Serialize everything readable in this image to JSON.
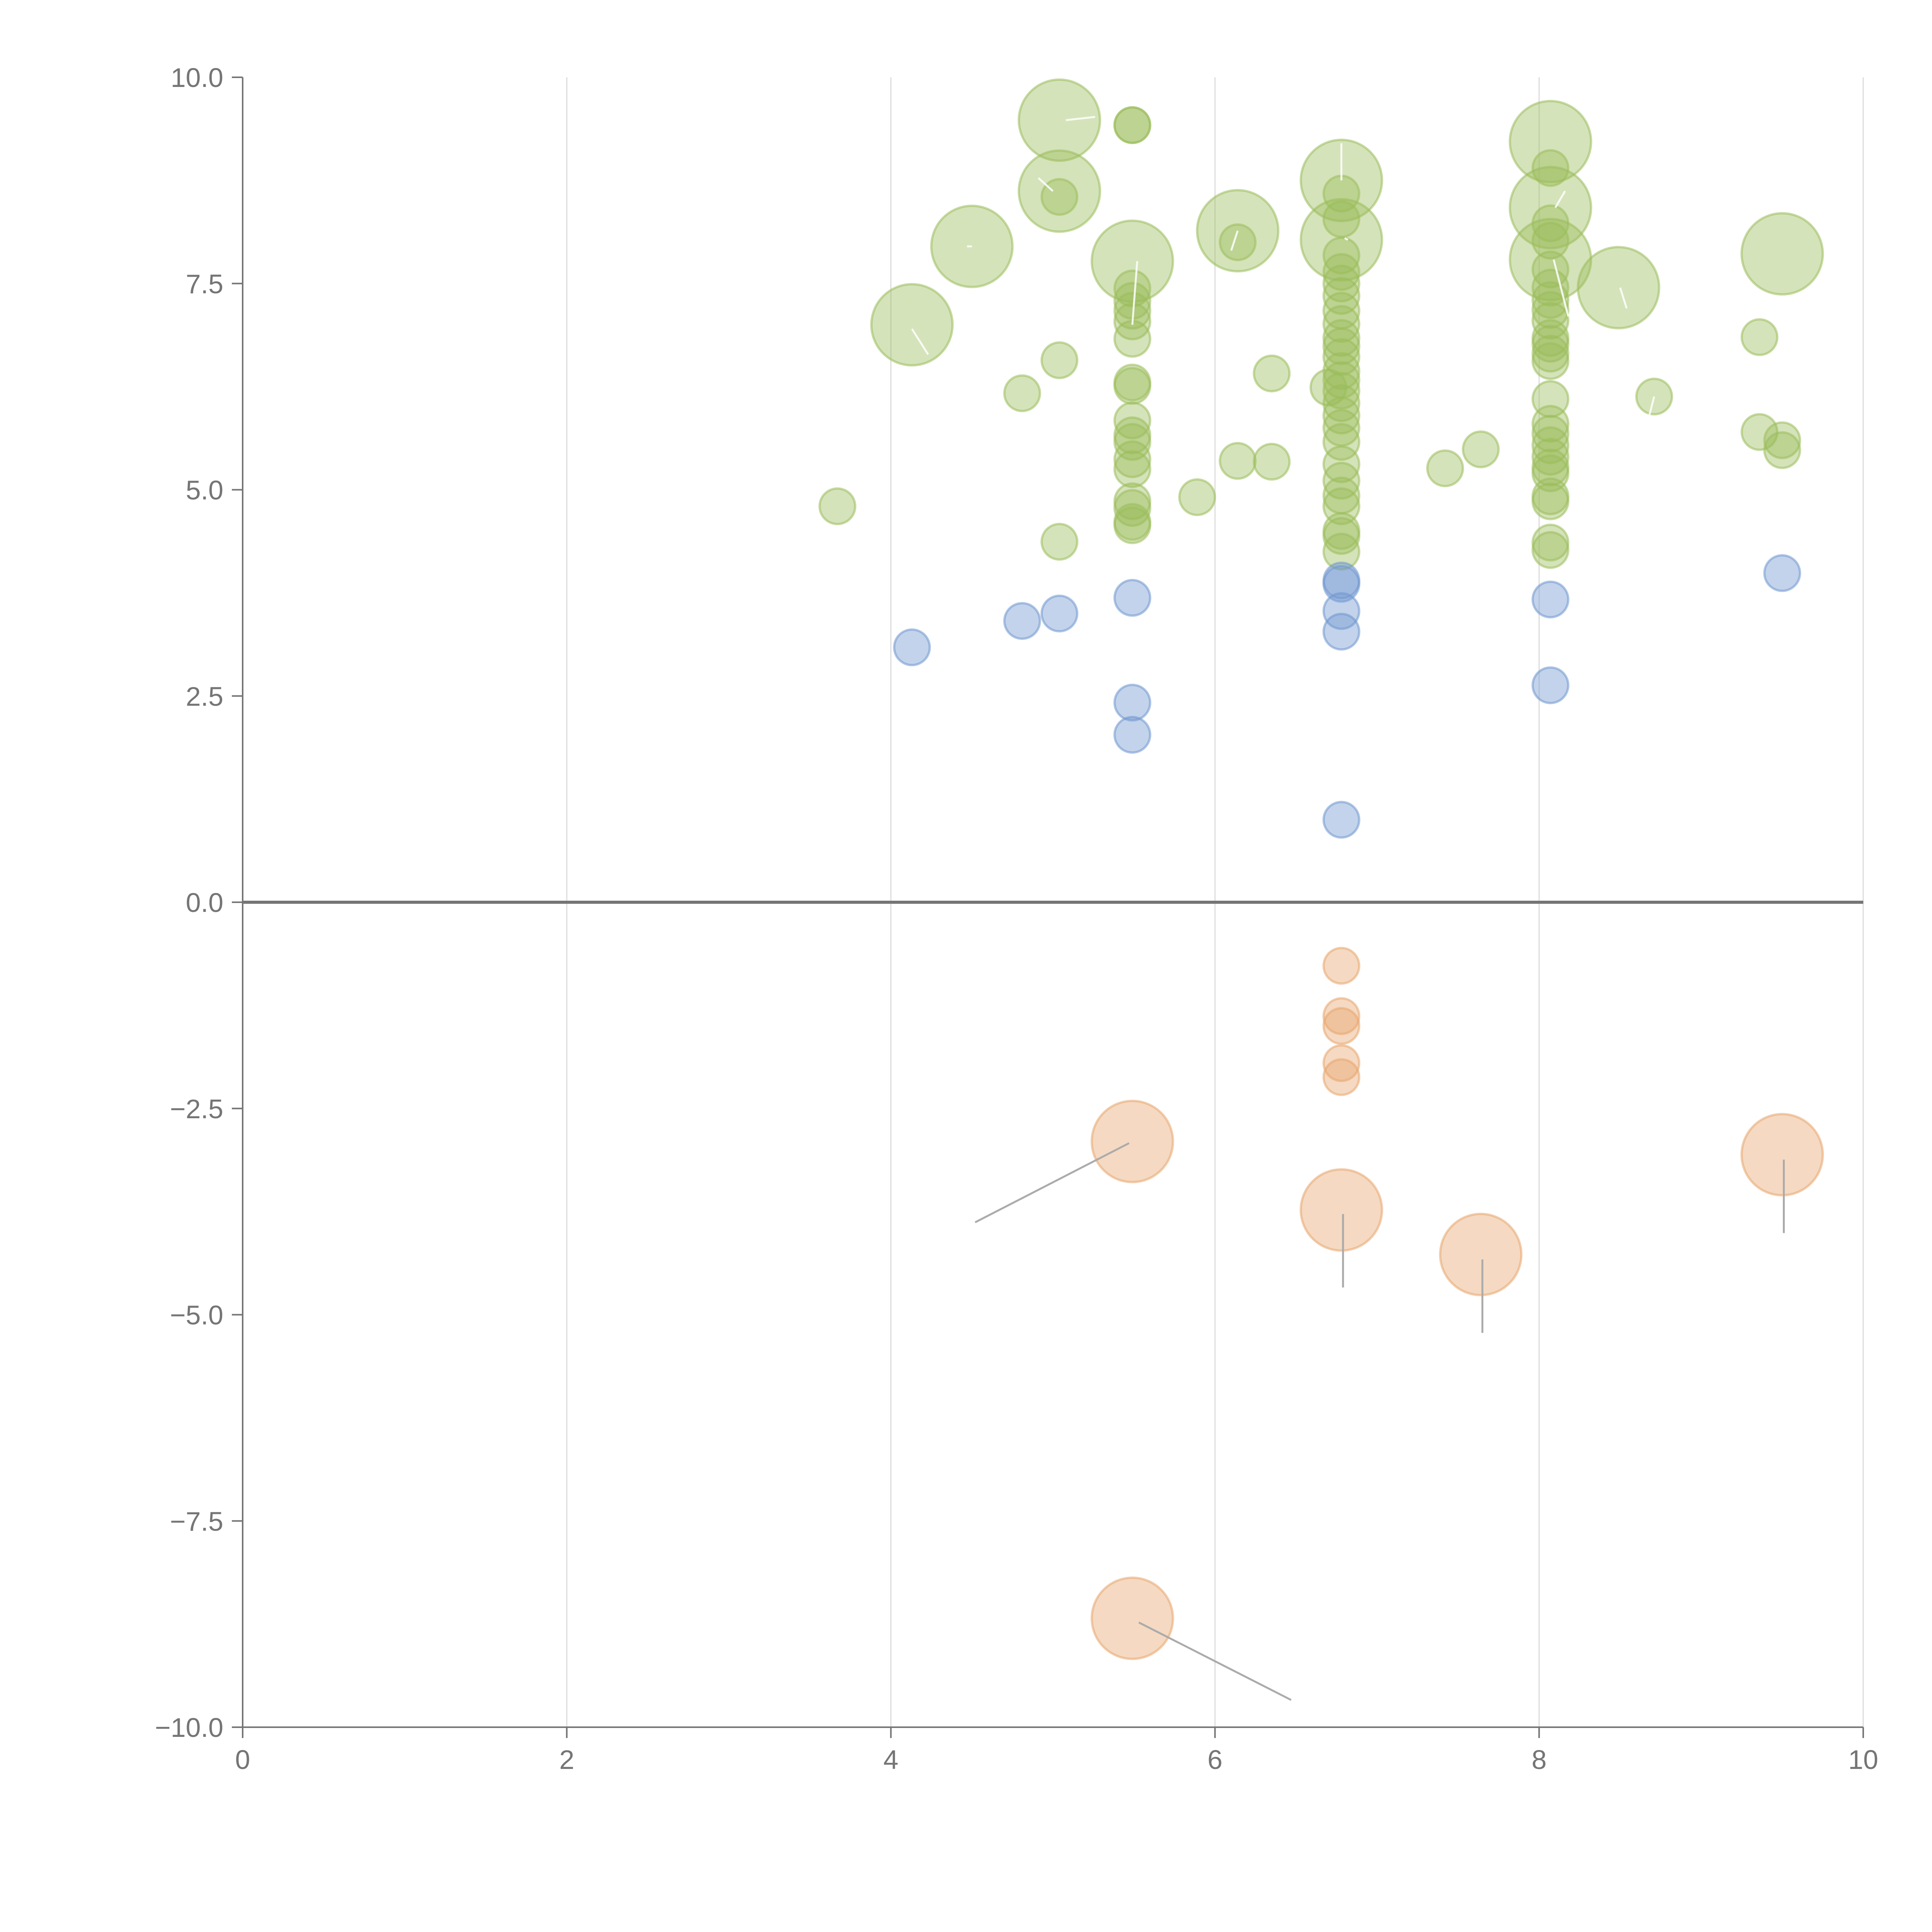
{
  "chart_data": {
    "type": "scatter",
    "title": "",
    "xlabel": "",
    "ylabel": "",
    "xlim": [
      0,
      10
    ],
    "ylim": [
      -10,
      10
    ],
    "x_ticks": [
      0,
      2,
      4,
      6,
      8,
      10
    ],
    "x_tick_labels": [
      "0",
      "2",
      "4",
      "6",
      "8",
      "10"
    ],
    "y_ticks": [
      10,
      7.5,
      5,
      2.5,
      0,
      -2.5,
      -5,
      -7.5,
      -10
    ],
    "y_tick_labels": [
      "10.0",
      "7.5",
      "5.0",
      "2.5",
      "0.0",
      "−2.5",
      "−5.0",
      "−7.5",
      "−10.0"
    ],
    "grid": "vertical",
    "zero_line": true,
    "legend": "none",
    "series": [
      {
        "color": "#9ABD5B",
        "points": [
          {
            "x": 3.67,
            "y": 4.8,
            "r": "small"
          },
          {
            "x": 4.13,
            "y": 7.0,
            "r": "large"
          },
          {
            "x": 4.5,
            "y": 7.95,
            "r": "large"
          },
          {
            "x": 4.81,
            "y": 6.17,
            "r": "small"
          },
          {
            "x": 5.04,
            "y": 9.48,
            "r": "large"
          },
          {
            "x": 5.04,
            "y": 8.62,
            "r": "large"
          },
          {
            "x": 5.04,
            "y": 8.55,
            "r": "small"
          },
          {
            "x": 5.04,
            "y": 6.57,
            "r": "small"
          },
          {
            "x": 5.04,
            "y": 4.37,
            "r": "small"
          },
          {
            "x": 5.49,
            "y": 9.42,
            "r": "small"
          },
          {
            "x": 5.49,
            "y": 9.42,
            "r": "small"
          },
          {
            "x": 5.49,
            "y": 7.77,
            "r": "large"
          },
          {
            "x": 5.49,
            "y": 7.44,
            "r": "small"
          },
          {
            "x": 5.49,
            "y": 7.29,
            "r": "small"
          },
          {
            "x": 5.49,
            "y": 7.17,
            "r": "small"
          },
          {
            "x": 5.49,
            "y": 7.04,
            "r": "small"
          },
          {
            "x": 5.49,
            "y": 6.83,
            "r": "small"
          },
          {
            "x": 5.49,
            "y": 6.3,
            "r": "small"
          },
          {
            "x": 5.49,
            "y": 6.26,
            "r": "small"
          },
          {
            "x": 5.49,
            "y": 5.84,
            "r": "small"
          },
          {
            "x": 5.49,
            "y": 5.66,
            "r": "small"
          },
          {
            "x": 5.49,
            "y": 5.58,
            "r": "small"
          },
          {
            "x": 5.49,
            "y": 5.37,
            "r": "small"
          },
          {
            "x": 5.49,
            "y": 5.25,
            "r": "small"
          },
          {
            "x": 5.49,
            "y": 4.86,
            "r": "small"
          },
          {
            "x": 5.49,
            "y": 4.78,
            "r": "small"
          },
          {
            "x": 5.49,
            "y": 4.61,
            "r": "small"
          },
          {
            "x": 5.49,
            "y": 4.57,
            "r": "small"
          },
          {
            "x": 5.89,
            "y": 4.91,
            "r": "small"
          },
          {
            "x": 6.14,
            "y": 8.14,
            "r": "large"
          },
          {
            "x": 6.14,
            "y": 8.0,
            "r": "small"
          },
          {
            "x": 6.14,
            "y": 5.35,
            "r": "small"
          },
          {
            "x": 6.35,
            "y": 6.41,
            "r": "small"
          },
          {
            "x": 6.35,
            "y": 5.34,
            "r": "small"
          },
          {
            "x": 6.78,
            "y": 8.75,
            "r": "large"
          },
          {
            "x": 6.78,
            "y": 8.03,
            "r": "large"
          },
          {
            "x": 6.78,
            "y": 8.59,
            "r": "small"
          },
          {
            "x": 6.78,
            "y": 8.28,
            "r": "small"
          },
          {
            "x": 6.78,
            "y": 7.84,
            "r": "small"
          },
          {
            "x": 6.78,
            "y": 7.64,
            "r": "small"
          },
          {
            "x": 6.78,
            "y": 7.5,
            "r": "small"
          },
          {
            "x": 6.78,
            "y": 7.35,
            "r": "small"
          },
          {
            "x": 6.78,
            "y": 7.17,
            "r": "small"
          },
          {
            "x": 6.78,
            "y": 7.01,
            "r": "small"
          },
          {
            "x": 6.78,
            "y": 6.84,
            "r": "small"
          },
          {
            "x": 6.78,
            "y": 6.74,
            "r": "small"
          },
          {
            "x": 6.78,
            "y": 6.61,
            "r": "small"
          },
          {
            "x": 6.78,
            "y": 6.44,
            "r": "small"
          },
          {
            "x": 6.78,
            "y": 6.33,
            "r": "small"
          },
          {
            "x": 6.78,
            "y": 6.2,
            "r": "small"
          },
          {
            "x": 6.7,
            "y": 6.24,
            "r": "small"
          },
          {
            "x": 6.78,
            "y": 6.05,
            "r": "small"
          },
          {
            "x": 6.78,
            "y": 5.9,
            "r": "small"
          },
          {
            "x": 6.78,
            "y": 5.75,
            "r": "small"
          },
          {
            "x": 6.78,
            "y": 5.58,
            "r": "small"
          },
          {
            "x": 6.78,
            "y": 5.31,
            "r": "small"
          },
          {
            "x": 6.78,
            "y": 5.11,
            "r": "small"
          },
          {
            "x": 6.78,
            "y": 4.93,
            "r": "small"
          },
          {
            "x": 6.78,
            "y": 4.8,
            "r": "small"
          },
          {
            "x": 6.78,
            "y": 4.5,
            "r": "small"
          },
          {
            "x": 6.78,
            "y": 4.44,
            "r": "small"
          },
          {
            "x": 6.78,
            "y": 4.25,
            "r": "small"
          },
          {
            "x": 7.42,
            "y": 5.26,
            "r": "small"
          },
          {
            "x": 7.64,
            "y": 5.49,
            "r": "small"
          },
          {
            "x": 8.07,
            "y": 9.22,
            "r": "large"
          },
          {
            "x": 8.07,
            "y": 8.42,
            "r": "large"
          },
          {
            "x": 8.07,
            "y": 7.79,
            "r": "large"
          },
          {
            "x": 8.07,
            "y": 8.9,
            "r": "small"
          },
          {
            "x": 8.07,
            "y": 8.23,
            "r": "small"
          },
          {
            "x": 8.07,
            "y": 8.02,
            "r": "small"
          },
          {
            "x": 8.07,
            "y": 7.67,
            "r": "small"
          },
          {
            "x": 8.07,
            "y": 7.45,
            "r": "small"
          },
          {
            "x": 8.07,
            "y": 7.3,
            "r": "small"
          },
          {
            "x": 8.07,
            "y": 7.18,
            "r": "small"
          },
          {
            "x": 8.07,
            "y": 7.05,
            "r": "small"
          },
          {
            "x": 8.07,
            "y": 6.84,
            "r": "small"
          },
          {
            "x": 8.07,
            "y": 6.77,
            "r": "small"
          },
          {
            "x": 8.07,
            "y": 6.65,
            "r": "small"
          },
          {
            "x": 8.07,
            "y": 6.56,
            "r": "small"
          },
          {
            "x": 8.07,
            "y": 6.1,
            "r": "small"
          },
          {
            "x": 8.07,
            "y": 5.8,
            "r": "small"
          },
          {
            "x": 8.07,
            "y": 5.68,
            "r": "small"
          },
          {
            "x": 8.07,
            "y": 5.54,
            "r": "small"
          },
          {
            "x": 8.07,
            "y": 5.4,
            "r": "small"
          },
          {
            "x": 8.07,
            "y": 5.27,
            "r": "small"
          },
          {
            "x": 8.07,
            "y": 5.2,
            "r": "small"
          },
          {
            "x": 8.07,
            "y": 4.92,
            "r": "small"
          },
          {
            "x": 8.07,
            "y": 4.86,
            "r": "small"
          },
          {
            "x": 8.07,
            "y": 4.36,
            "r": "small"
          },
          {
            "x": 8.07,
            "y": 4.27,
            "r": "small"
          },
          {
            "x": 8.49,
            "y": 7.45,
            "r": "large"
          },
          {
            "x": 8.71,
            "y": 6.13,
            "r": "small"
          },
          {
            "x": 9.36,
            "y": 6.85,
            "r": "small"
          },
          {
            "x": 9.36,
            "y": 5.7,
            "r": "small"
          },
          {
            "x": 9.5,
            "y": 7.86,
            "r": "large"
          },
          {
            "x": 9.5,
            "y": 5.6,
            "r": "small"
          },
          {
            "x": 9.5,
            "y": 5.48,
            "r": "small"
          }
        ]
      },
      {
        "color": "#6F97CF",
        "points": [
          {
            "x": 4.13,
            "y": 3.09,
            "r": "small"
          },
          {
            "x": 4.81,
            "y": 3.41,
            "r": "small"
          },
          {
            "x": 5.04,
            "y": 3.5,
            "r": "small"
          },
          {
            "x": 5.49,
            "y": 3.69,
            "r": "small"
          },
          {
            "x": 5.49,
            "y": 2.42,
            "r": "small"
          },
          {
            "x": 5.49,
            "y": 2.03,
            "r": "small"
          },
          {
            "x": 6.78,
            "y": 3.9,
            "r": "small"
          },
          {
            "x": 6.78,
            "y": 3.86,
            "r": "small"
          },
          {
            "x": 6.78,
            "y": 3.53,
            "r": "small"
          },
          {
            "x": 6.78,
            "y": 3.28,
            "r": "small"
          },
          {
            "x": 6.78,
            "y": 1.0,
            "r": "small"
          },
          {
            "x": 8.07,
            "y": 3.67,
            "r": "small"
          },
          {
            "x": 8.07,
            "y": 2.63,
            "r": "small"
          },
          {
            "x": 9.5,
            "y": 3.99,
            "r": "small"
          }
        ]
      },
      {
        "color": "#E8A56E",
        "points": [
          {
            "x": 6.78,
            "y": -0.77,
            "r": "small"
          },
          {
            "x": 6.78,
            "y": -1.38,
            "r": "small"
          },
          {
            "x": 6.78,
            "y": -1.5,
            "r": "small"
          },
          {
            "x": 6.78,
            "y": -1.95,
            "r": "small"
          },
          {
            "x": 6.78,
            "y": -2.12,
            "r": "small"
          },
          {
            "x": 5.49,
            "y": -2.9,
            "r": "large"
          },
          {
            "x": 6.78,
            "y": -3.73,
            "r": "large"
          },
          {
            "x": 7.64,
            "y": -4.27,
            "r": "large"
          },
          {
            "x": 9.5,
            "y": -3.06,
            "r": "large"
          },
          {
            "x": 5.49,
            "y": -8.68,
            "r": "large"
          }
        ]
      }
    ],
    "leaders": [
      {
        "x1": 5.47,
        "y1": -2.92,
        "x2": 4.52,
        "y2": -3.88,
        "style": "grey"
      },
      {
        "x1": 6.79,
        "y1": -3.78,
        "x2": 6.79,
        "y2": -4.67,
        "style": "grey"
      },
      {
        "x1": 7.65,
        "y1": -4.33,
        "x2": 7.65,
        "y2": -5.22,
        "style": "grey"
      },
      {
        "x1": 9.51,
        "y1": -3.12,
        "x2": 9.51,
        "y2": -4.01,
        "style": "grey"
      },
      {
        "x1": 5.53,
        "y1": -8.73,
        "x2": 6.47,
        "y2": -9.67,
        "style": "grey"
      },
      {
        "x1": 4.13,
        "y1": 6.95,
        "x2": 4.23,
        "y2": 6.64,
        "style": "white"
      },
      {
        "x1": 4.5,
        "y1": 7.95,
        "x2": 4.47,
        "y2": 7.95,
        "style": "white"
      },
      {
        "x1": 5.08,
        "y1": 9.48,
        "x2": 5.26,
        "y2": 9.52,
        "style": "white"
      },
      {
        "x1": 5.0,
        "y1": 8.62,
        "x2": 4.91,
        "y2": 8.78,
        "style": "white"
      },
      {
        "x1": 5.52,
        "y1": 7.77,
        "x2": 5.49,
        "y2": 7.0,
        "style": "white"
      },
      {
        "x1": 6.14,
        "y1": 8.14,
        "x2": 6.1,
        "y2": 7.9,
        "style": "white"
      },
      {
        "x1": 6.78,
        "y1": 8.75,
        "x2": 6.78,
        "y2": 9.2,
        "style": "white"
      },
      {
        "x1": 6.82,
        "y1": 8.03,
        "x2": 6.8,
        "y2": 8.05,
        "style": "white"
      },
      {
        "x1": 8.1,
        "y1": 8.42,
        "x2": 8.16,
        "y2": 8.62,
        "style": "white"
      },
      {
        "x1": 8.09,
        "y1": 7.79,
        "x2": 8.18,
        "y2": 7.1,
        "style": "white"
      },
      {
        "x1": 8.5,
        "y1": 7.45,
        "x2": 8.54,
        "y2": 7.2,
        "style": "white"
      },
      {
        "x1": 8.71,
        "y1": 6.13,
        "x2": 8.68,
        "y2": 5.9,
        "style": "white"
      }
    ]
  }
}
